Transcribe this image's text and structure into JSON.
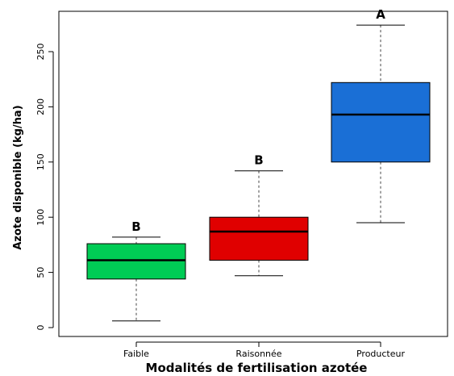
{
  "chart_data": {
    "type": "boxplot",
    "title": "",
    "xlabel": "Modalités de fertilisation azotée",
    "ylabel": "Azote disponible (kg/ha)",
    "ylim": [
      -8,
      287
    ],
    "yticks": [
      0,
      50,
      100,
      150,
      200,
      250
    ],
    "grid": false,
    "categories": [
      "Faible",
      "Raisonnée",
      "Producteur"
    ],
    "boxes": [
      {
        "category": "Faible",
        "min": 6,
        "q1": 44,
        "median": 61,
        "q3": 76,
        "max": 82,
        "letter": "B",
        "color": "#00cc55"
      },
      {
        "category": "Raisonnée",
        "min": 47,
        "q1": 61,
        "median": 87,
        "q3": 100,
        "max": 142,
        "letter": "B",
        "color": "#e00000"
      },
      {
        "category": "Producteur",
        "min": 95,
        "q1": 150,
        "median": 193,
        "q3": 222,
        "max": 274,
        "letter": "A",
        "color": "#1a6fd6"
      }
    ]
  }
}
